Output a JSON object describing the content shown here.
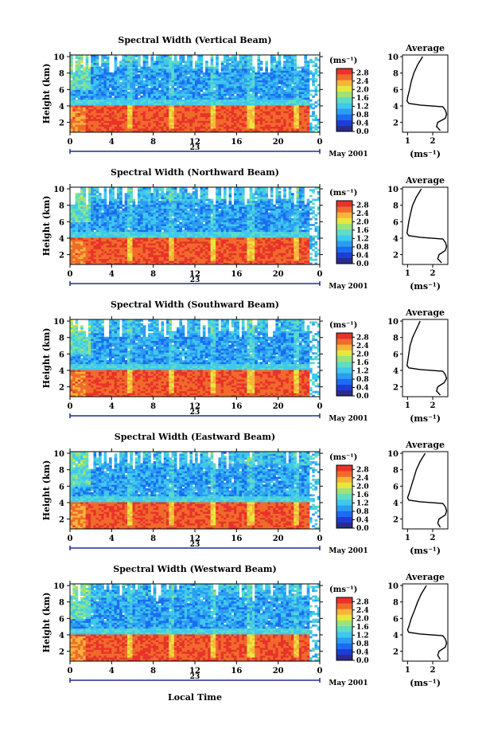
{
  "figure": {
    "shared_xlabel": "Local Time",
    "date_label": "May 2001",
    "day_label": "23",
    "colorbar_unit": "(ms⁻¹)",
    "avg_title": "Average",
    "avg_xlabel": "(ms⁻¹)",
    "colormap": [
      "#2b2b8c",
      "#1f3cd6",
      "#1a6cf0",
      "#2c9cf2",
      "#3fc8ee",
      "#5fdcc4",
      "#9be37a",
      "#e6e83c",
      "#f8b43a",
      "#f06a2c",
      "#e8322a"
    ]
  },
  "chart_data": [
    {
      "type": "heatmap",
      "title": "Spectral Width (Vertical Beam)",
      "xlabel": "",
      "ylabel": "Height (km)",
      "x_ticks": [
        "0",
        "4",
        "8",
        "12",
        "16",
        "20",
        "0"
      ],
      "y_ticks": [
        "2",
        "4",
        "6",
        "8",
        "10"
      ],
      "xlim": [
        0,
        24
      ],
      "ylim": [
        0.8,
        10.2
      ],
      "colorbar_ticks": [
        "0.0",
        "0.4",
        "0.8",
        "1.2",
        "1.6",
        "2.0",
        "2.4",
        "2.8"
      ],
      "colorbar_range": [
        0,
        3.0
      ],
      "avg_profile": {
        "x_ticks": [
          "1",
          "2"
        ],
        "y_ticks": [
          "2",
          "4",
          "6",
          "8",
          "10"
        ],
        "xlim": [
          0.8,
          2.6
        ],
        "heights": [
          1.0,
          1.5,
          2.0,
          2.5,
          3.0,
          3.5,
          3.9,
          4.1,
          4.3,
          4.6,
          5.0,
          6.0,
          7.0,
          8.0,
          9.0,
          10.0
        ],
        "values": [
          2.3,
          2.15,
          2.2,
          2.5,
          2.55,
          2.5,
          2.4,
          1.5,
          1.05,
          0.98,
          1.0,
          1.08,
          1.15,
          1.25,
          1.4,
          1.6
        ]
      }
    },
    {
      "type": "heatmap",
      "title": "Spectral Width (Northward Beam)",
      "xlabel": "",
      "ylabel": "Height (km)",
      "x_ticks": [
        "0",
        "4",
        "8",
        "12",
        "16",
        "20",
        "0"
      ],
      "y_ticks": [
        "2",
        "4",
        "6",
        "8",
        "10"
      ],
      "xlim": [
        0,
        24
      ],
      "ylim": [
        0.8,
        10.2
      ],
      "colorbar_ticks": [
        "0.0",
        "0.4",
        "0.8",
        "1.2",
        "1.6",
        "2.0",
        "2.4",
        "2.8"
      ],
      "colorbar_range": [
        0,
        3.0
      ],
      "avg_profile": {
        "x_ticks": [
          "1",
          "2"
        ],
        "y_ticks": [
          "2",
          "4",
          "6",
          "8",
          "10"
        ],
        "xlim": [
          0.8,
          2.6
        ],
        "heights": [
          1.0,
          1.5,
          2.0,
          2.5,
          3.0,
          3.5,
          3.9,
          4.1,
          4.3,
          4.6,
          5.0,
          6.0,
          7.0,
          8.0,
          9.0,
          10.0
        ],
        "values": [
          2.35,
          2.2,
          2.25,
          2.5,
          2.55,
          2.5,
          2.4,
          1.5,
          1.05,
          0.98,
          1.0,
          1.05,
          1.12,
          1.2,
          1.35,
          1.55
        ]
      }
    },
    {
      "type": "heatmap",
      "title": "Spectral Width (Southward Beam)",
      "xlabel": "",
      "ylabel": "Height (km)",
      "x_ticks": [
        "0",
        "4",
        "8",
        "12",
        "16",
        "20",
        "0"
      ],
      "y_ticks": [
        "2",
        "4",
        "6",
        "8",
        "10"
      ],
      "xlim": [
        0,
        24
      ],
      "ylim": [
        0.8,
        10.2
      ],
      "colorbar_ticks": [
        "0.0",
        "0.4",
        "0.8",
        "1.2",
        "1.6",
        "2.0",
        "2.4",
        "2.8"
      ],
      "colorbar_range": [
        0,
        3.0
      ],
      "avg_profile": {
        "x_ticks": [
          "1",
          "2"
        ],
        "y_ticks": [
          "2",
          "4",
          "6",
          "8",
          "10"
        ],
        "xlim": [
          0.8,
          2.6
        ],
        "heights": [
          1.0,
          1.5,
          2.0,
          2.5,
          3.0,
          3.5,
          3.9,
          4.1,
          4.3,
          4.6,
          5.0,
          6.0,
          7.0,
          8.0,
          9.0,
          10.0
        ],
        "values": [
          2.3,
          2.15,
          2.2,
          2.45,
          2.55,
          2.5,
          2.4,
          1.5,
          1.05,
          0.98,
          1.0,
          1.05,
          1.1,
          1.2,
          1.35,
          1.5
        ]
      }
    },
    {
      "type": "heatmap",
      "title": "Spectral Width (Eastward Beam)",
      "xlabel": "",
      "ylabel": "Height (km)",
      "x_ticks": [
        "0",
        "4",
        "8",
        "12",
        "16",
        "20",
        "0"
      ],
      "y_ticks": [
        "2",
        "4",
        "6",
        "8",
        "10"
      ],
      "xlim": [
        0,
        24
      ],
      "ylim": [
        0.8,
        10.2
      ],
      "colorbar_ticks": [
        "0.0",
        "0.4",
        "0.8",
        "1.2",
        "1.6",
        "2.0",
        "2.4",
        "2.8"
      ],
      "colorbar_range": [
        0,
        3.0
      ],
      "avg_profile": {
        "x_ticks": [
          "1",
          "2"
        ],
        "y_ticks": [
          "2",
          "4",
          "6",
          "8",
          "10"
        ],
        "xlim": [
          0.8,
          2.6
        ],
        "heights": [
          1.0,
          1.5,
          2.0,
          2.5,
          3.0,
          3.5,
          3.9,
          4.1,
          4.3,
          4.6,
          5.0,
          6.0,
          7.0,
          8.0,
          9.0,
          10.0
        ],
        "values": [
          2.3,
          2.2,
          2.25,
          2.5,
          2.55,
          2.5,
          2.4,
          1.5,
          1.05,
          1.0,
          1.05,
          1.15,
          1.25,
          1.35,
          1.5,
          1.7
        ]
      }
    },
    {
      "type": "heatmap",
      "title": "Spectral Width (Westward Beam)",
      "xlabel": "",
      "ylabel": "Height (km)",
      "x_ticks": [
        "0",
        "4",
        "8",
        "12",
        "16",
        "20",
        "0"
      ],
      "y_ticks": [
        "2",
        "4",
        "6",
        "8",
        "10"
      ],
      "xlim": [
        0,
        24
      ],
      "ylim": [
        0.8,
        10.2
      ],
      "colorbar_ticks": [
        "0.0",
        "0.4",
        "0.8",
        "1.2",
        "1.6",
        "2.0",
        "2.4",
        "2.8"
      ],
      "colorbar_range": [
        0,
        3.0
      ],
      "avg_profile": {
        "x_ticks": [
          "1",
          "2"
        ],
        "y_ticks": [
          "2",
          "4",
          "6",
          "8",
          "10"
        ],
        "xlim": [
          0.8,
          2.6
        ],
        "heights": [
          1.0,
          1.5,
          2.0,
          2.5,
          3.0,
          3.5,
          3.9,
          4.1,
          4.3,
          4.6,
          5.0,
          6.0,
          7.0,
          8.0,
          9.0,
          10.0
        ],
        "values": [
          2.3,
          2.2,
          2.25,
          2.5,
          2.55,
          2.5,
          2.4,
          1.5,
          1.05,
          1.0,
          1.05,
          1.15,
          1.28,
          1.4,
          1.55,
          1.75
        ]
      }
    }
  ]
}
